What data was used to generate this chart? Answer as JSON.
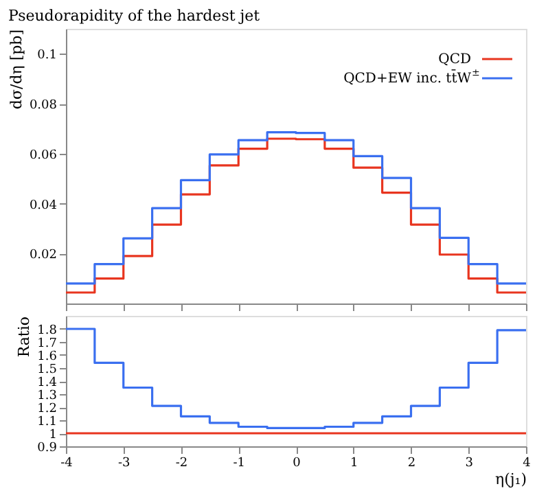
{
  "chart_data": [
    {
      "type": "histogram",
      "title": "Pseudorapidity of the hardest jet",
      "ylabel": "dσ/dη [pb]",
      "bins": [
        -4,
        -3.5,
        -3,
        -2.5,
        -2,
        -1.5,
        -1,
        -0.5,
        0,
        0.5,
        1,
        1.5,
        2,
        2.5,
        3,
        3.5,
        4
      ],
      "xlim": [
        -4,
        4
      ],
      "xticks": [
        -4,
        -3,
        -2,
        -1,
        0,
        1,
        2,
        3,
        4
      ],
      "ylim": [
        0,
        0.11
      ],
      "yticks": [
        0.02,
        0.04,
        0.06,
        0.08,
        0.1
      ],
      "tick_labels": "y",
      "legend": "top right",
      "grid": false,
      "series": [
        {
          "name": "QCD",
          "color": "#e8351f",
          "values": [
            0.0044,
            0.01,
            0.019,
            0.0316,
            0.0437,
            0.0553,
            0.062,
            0.066,
            0.0658,
            0.062,
            0.0544,
            0.0444,
            0.0316,
            0.0196,
            0.01,
            0.0044
          ]
        },
        {
          "name": "QCD+EW inc. tt̄W$^{±}$",
          "color": "#3a6ff0",
          "values": [
            0.008,
            0.0158,
            0.0261,
            0.0382,
            0.0494,
            0.0597,
            0.0654,
            0.0686,
            0.0683,
            0.0654,
            0.059,
            0.0503,
            0.0382,
            0.0263,
            0.0158,
            0.008
          ]
        }
      ]
    },
    {
      "type": "histogram",
      "xlabel": "η(j₁)",
      "ylabel": "Ratio",
      "bins": [
        -4,
        -3.5,
        -3,
        -2.5,
        -2,
        -1.5,
        -1,
        -0.5,
        0,
        0.5,
        1,
        1.5,
        2,
        2.5,
        3,
        3.5,
        4
      ],
      "xlim": [
        -4,
        4
      ],
      "xticks": [
        -4,
        -3,
        -2,
        -1,
        0,
        1,
        2,
        3,
        4
      ],
      "ylim": [
        0.9,
        1.9
      ],
      "yticks": [
        0.9,
        1,
        1.1,
        1.2,
        1.3,
        1.4,
        1.5,
        1.6,
        1.7,
        1.8
      ],
      "grid": false,
      "series": [
        {
          "color": "#e8351f",
          "values": [
            1,
            1,
            1,
            1,
            1,
            1,
            1,
            1,
            1,
            1,
            1,
            1,
            1,
            1,
            1,
            1
          ]
        },
        {
          "color": "#3a6ff0",
          "values": [
            1.8,
            1.54,
            1.35,
            1.21,
            1.13,
            1.08,
            1.05,
            1.04,
            1.04,
            1.05,
            1.08,
            1.13,
            1.21,
            1.35,
            1.54,
            1.79
          ]
        }
      ]
    }
  ]
}
